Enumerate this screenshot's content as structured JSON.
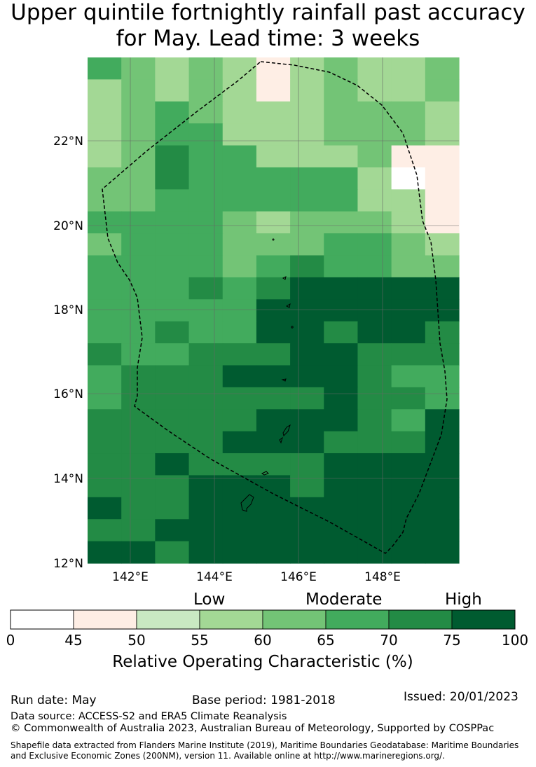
{
  "title": {
    "line1": "Upper quintile fortnightly rainfall past accuracy",
    "line2": "for May. Lead time: 3 weeks"
  },
  "map": {
    "lat_ticks": [
      "22°N",
      "20°N",
      "18°N",
      "16°N",
      "14°N",
      "12°N"
    ],
    "lon_ticks": [
      "142°E",
      "144°E",
      "146°E",
      "148°E"
    ],
    "region_outline": "dashed EEZ boundary",
    "grid_values": [
      [
        65,
        60,
        55,
        60,
        55,
        45,
        55,
        60,
        55,
        55,
        60
      ],
      [
        55,
        60,
        55,
        60,
        55,
        45,
        55,
        60,
        55,
        55,
        60
      ],
      [
        55,
        60,
        65,
        60,
        55,
        55,
        55,
        60,
        60,
        60,
        55
      ],
      [
        55,
        60,
        65,
        65,
        55,
        55,
        55,
        60,
        60,
        60,
        55
      ],
      [
        55,
        60,
        70,
        65,
        65,
        55,
        55,
        55,
        60,
        45,
        45
      ],
      [
        60,
        60,
        70,
        65,
        65,
        65,
        65,
        65,
        55,
        40,
        45
      ],
      [
        60,
        60,
        65,
        65,
        65,
        65,
        65,
        65,
        55,
        55,
        45
      ],
      [
        65,
        65,
        65,
        65,
        60,
        55,
        60,
        60,
        60,
        55,
        45
      ],
      [
        60,
        65,
        65,
        65,
        60,
        60,
        60,
        65,
        65,
        60,
        55
      ],
      [
        65,
        65,
        65,
        65,
        60,
        65,
        70,
        65,
        65,
        60,
        60
      ],
      [
        65,
        65,
        65,
        70,
        65,
        70,
        75,
        75,
        75,
        75,
        75
      ],
      [
        65,
        65,
        65,
        65,
        65,
        75,
        75,
        75,
        75,
        75,
        80
      ],
      [
        65,
        65,
        70,
        65,
        65,
        75,
        75,
        70,
        75,
        75,
        70
      ],
      [
        70,
        65,
        65,
        70,
        70,
        70,
        75,
        75,
        70,
        70,
        70
      ],
      [
        65,
        70,
        70,
        70,
        75,
        75,
        80,
        75,
        70,
        65,
        65
      ],
      [
        65,
        70,
        70,
        70,
        70,
        70,
        70,
        75,
        70,
        70,
        65
      ],
      [
        70,
        70,
        70,
        70,
        70,
        75,
        75,
        75,
        70,
        65,
        75
      ],
      [
        70,
        70,
        70,
        70,
        75,
        75,
        75,
        70,
        70,
        70,
        75
      ],
      [
        70,
        70,
        75,
        70,
        70,
        70,
        70,
        75,
        80,
        80,
        80
      ],
      [
        70,
        70,
        70,
        75,
        75,
        75,
        70,
        75,
        80,
        80,
        80
      ],
      [
        75,
        70,
        70,
        75,
        75,
        75,
        75,
        75,
        80,
        80,
        80
      ],
      [
        70,
        70,
        75,
        75,
        80,
        80,
        75,
        80,
        80,
        80,
        80
      ],
      [
        75,
        75,
        70,
        75,
        80,
        80,
        80,
        75,
        80,
        80,
        75
      ]
    ]
  },
  "colorbar": {
    "categories": {
      "low": "Low",
      "moderate": "Moderate",
      "high": "High"
    },
    "ticks": [
      "0",
      "45",
      "50",
      "55",
      "60",
      "65",
      "70",
      "75",
      "100"
    ],
    "bins": [
      {
        "from": 0,
        "to": 45,
        "color": "#ffffff"
      },
      {
        "from": 45,
        "to": 50,
        "color": "#feeee5"
      },
      {
        "from": 50,
        "to": 55,
        "color": "#c9e9c2"
      },
      {
        "from": 55,
        "to": 60,
        "color": "#a3d895"
      },
      {
        "from": 60,
        "to": 65,
        "color": "#73c476"
      },
      {
        "from": 65,
        "to": 70,
        "color": "#42ab5d"
      },
      {
        "from": 70,
        "to": 75,
        "color": "#238b45"
      },
      {
        "from": 75,
        "to": 100,
        "color": "#005b30"
      }
    ],
    "title": "Relative Operating Characteristic (%)"
  },
  "footer": {
    "run_date": "Run date: May",
    "base_period": "Base period: 1981-2018",
    "issued": "Issued: 20/01/2023",
    "data_source": "Data source: ACCESS-S2 and ERA5 Climate Reanalysis",
    "copyright": "© Commonwealth of Australia 2023, Australian Bureau of Meteorology, Supported by COSPPac",
    "shapefile_line1": "Shapefile data extracted from Flanders Marine Institute (2019), Maritime Boundaries Geodatabase: Maritime Boundaries",
    "shapefile_line2": "and Exclusive Economic Zones (200NM), version 11. Available online at http://www.marineregions.org/."
  }
}
